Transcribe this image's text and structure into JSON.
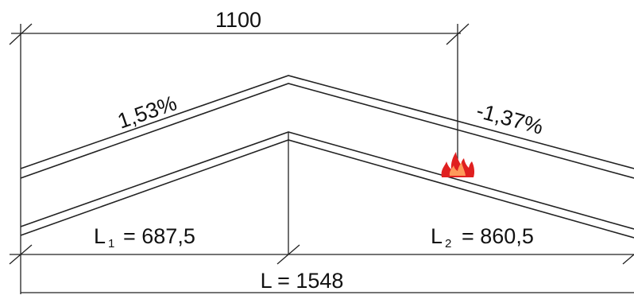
{
  "colors": {
    "line": "#222222",
    "text": "#111111",
    "fire": "#e02020",
    "fire_inner": "#ff9a5a"
  },
  "dimensions": {
    "top_span": "1100",
    "left_length_symbol": "L",
    "left_length_subscript": "1",
    "left_length_value": "= 687,5",
    "right_length_symbol": "L",
    "right_length_subscript": "2",
    "right_length_value": "= 860,5",
    "total_length": "L = 1548"
  },
  "gradients": {
    "left": "1,53%",
    "right": "-1,37%"
  },
  "icons": {
    "fire": "fire-icon"
  }
}
